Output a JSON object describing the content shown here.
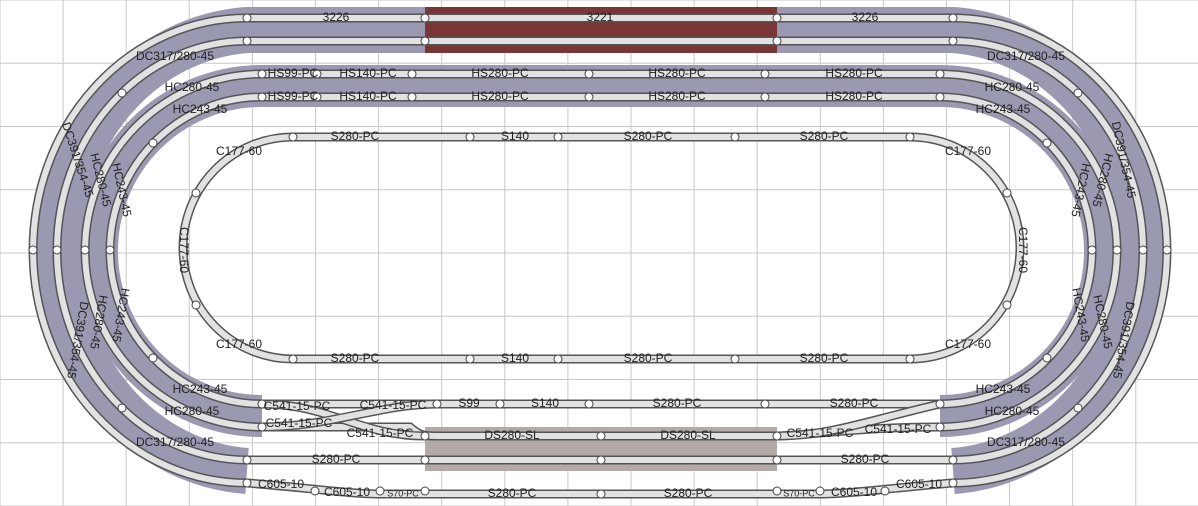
{
  "track_labels": [
    "3226",
    "3221",
    "3226",
    "DC317/280-45",
    "DC317/280-45",
    "HS99-PC",
    "HS140-PC",
    "HS280-PC",
    "HS280-PC",
    "HS280-PC",
    "HC280-45",
    "HC280-45",
    "HS99-PC",
    "HS140-PC",
    "HS280-PC",
    "HS280-PC",
    "HS280-PC",
    "HC243-45",
    "HC243-45",
    "S280-PC",
    "S140",
    "S280-PC",
    "S280-PC",
    "C177-60",
    "C177-60",
    "DC391/354-45",
    "HC280-45",
    "HC243-45",
    "DC391/354-45",
    "HC280-45",
    "HC243-45",
    "C177-60",
    "C177-60",
    "DC391/354-45",
    "HC280-45",
    "HC243-45",
    "DC391/354-45",
    "HC280-45",
    "HC243-45",
    "C177-60",
    "C177-60",
    "S280-PC",
    "S140",
    "S280-PC",
    "S280-PC",
    "HC243-45",
    "HC243-45",
    "C541-15-PC",
    "C541-15-PC",
    "S99",
    "S140",
    "S280-PC",
    "S280-PC",
    "HC280-45",
    "HC280-45",
    "C541-15-PC",
    "C541-15-PC",
    "DS280-SL",
    "DS280-SL",
    "C541-15-PC",
    "C541-15-PC",
    "DC317/280-45",
    "DC317/280-45",
    "S280-PC",
    "S280-PC",
    "C605-10",
    "C605-10",
    "S70-PC",
    "S280-PC",
    "S280-PC",
    "S70-PC",
    "C605-10",
    "C605-10"
  ]
}
